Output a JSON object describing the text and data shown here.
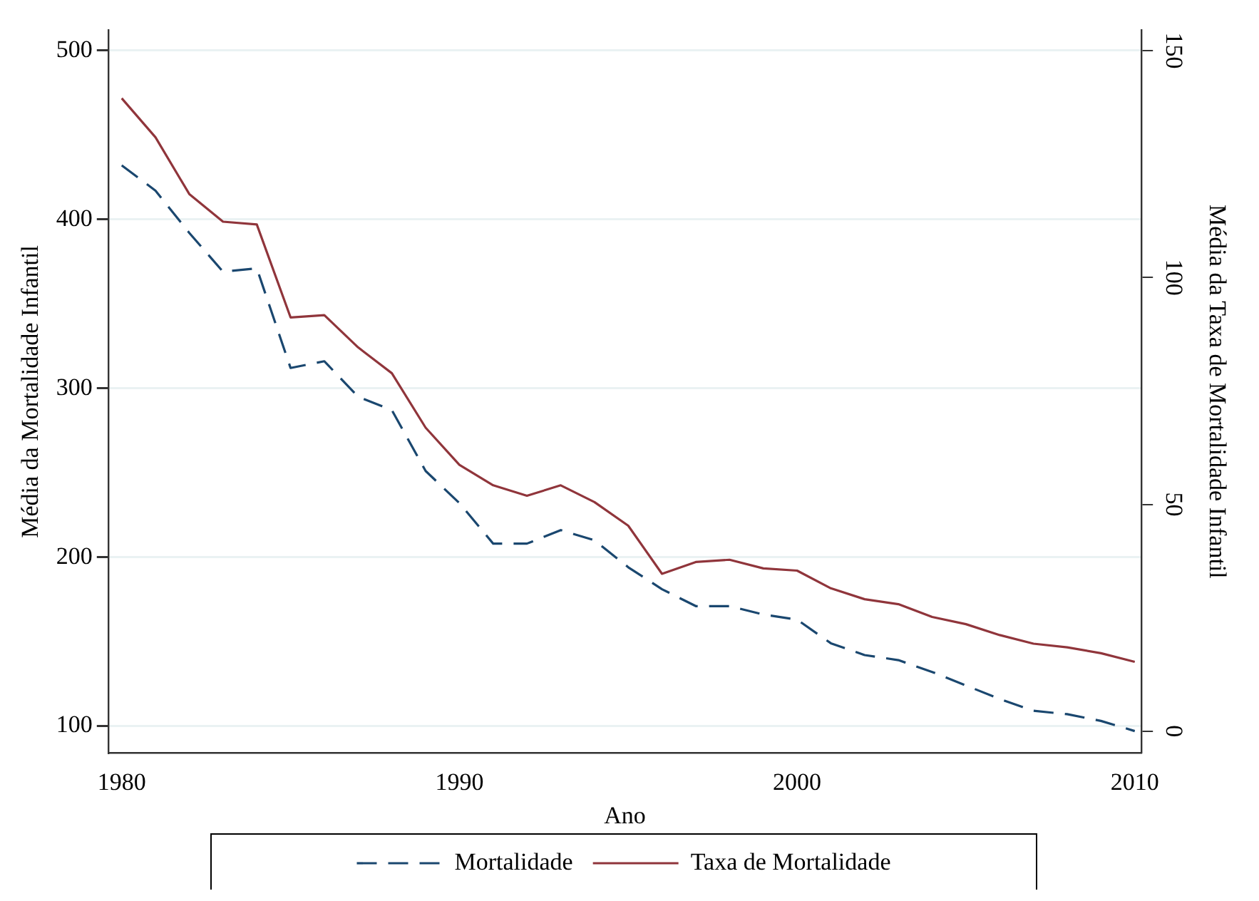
{
  "chart_data": {
    "type": "line",
    "xlabel": "Ano",
    "ylabel": "Média da Mortalidade Infantil",
    "y2label": "Média da Taxa de Mortalidade Infantil",
    "x": [
      1980,
      1981,
      1982,
      1983,
      1984,
      1985,
      1986,
      1987,
      1988,
      1989,
      1990,
      1991,
      1992,
      1993,
      1994,
      1995,
      1996,
      1997,
      1998,
      1999,
      2000,
      2001,
      2002,
      2003,
      2004,
      2005,
      2006,
      2007,
      2008,
      2009,
      2010
    ],
    "xlim": [
      1979.6,
      2010.2
    ],
    "xticks": [
      1980,
      1990,
      2000,
      2010
    ],
    "ylim": [
      84,
      512
    ],
    "yticks": [
      100,
      200,
      300,
      400,
      500
    ],
    "y2lim": [
      -4.8,
      154.5
    ],
    "y2ticks": [
      0,
      50,
      100,
      150
    ],
    "grid": "y",
    "legend": "bottom",
    "marker": "none",
    "series": [
      {
        "name": "Mortalidade",
        "color": "#1a476f",
        "line_style": "dashed",
        "values": [
          432,
          417,
          392,
          369,
          371,
          312,
          316,
          295,
          287,
          251,
          232,
          208,
          208,
          216,
          210,
          194,
          181,
          171,
          171,
          166,
          163,
          149,
          142,
          139,
          132,
          124,
          116,
          109,
          107,
          103,
          97
        ]
      },
      {
        "name": "Taxa de Mortalidade",
        "color": "#90353b",
        "line_style": "solid",
        "axis": "y2",
        "values": [
          139.5,
          130.9,
          118.4,
          112.3,
          111.7,
          91.2,
          91.7,
          84.6,
          78.9,
          66.9,
          58.7,
          54.2,
          51.9,
          54.2,
          50.5,
          45.3,
          34.7,
          37.3,
          37.8,
          35.9,
          35.4,
          31.5,
          29.1,
          28.0,
          25.2,
          23.6,
          21.2,
          19.3,
          18.5,
          17.2,
          15.3
        ]
      }
    ]
  }
}
